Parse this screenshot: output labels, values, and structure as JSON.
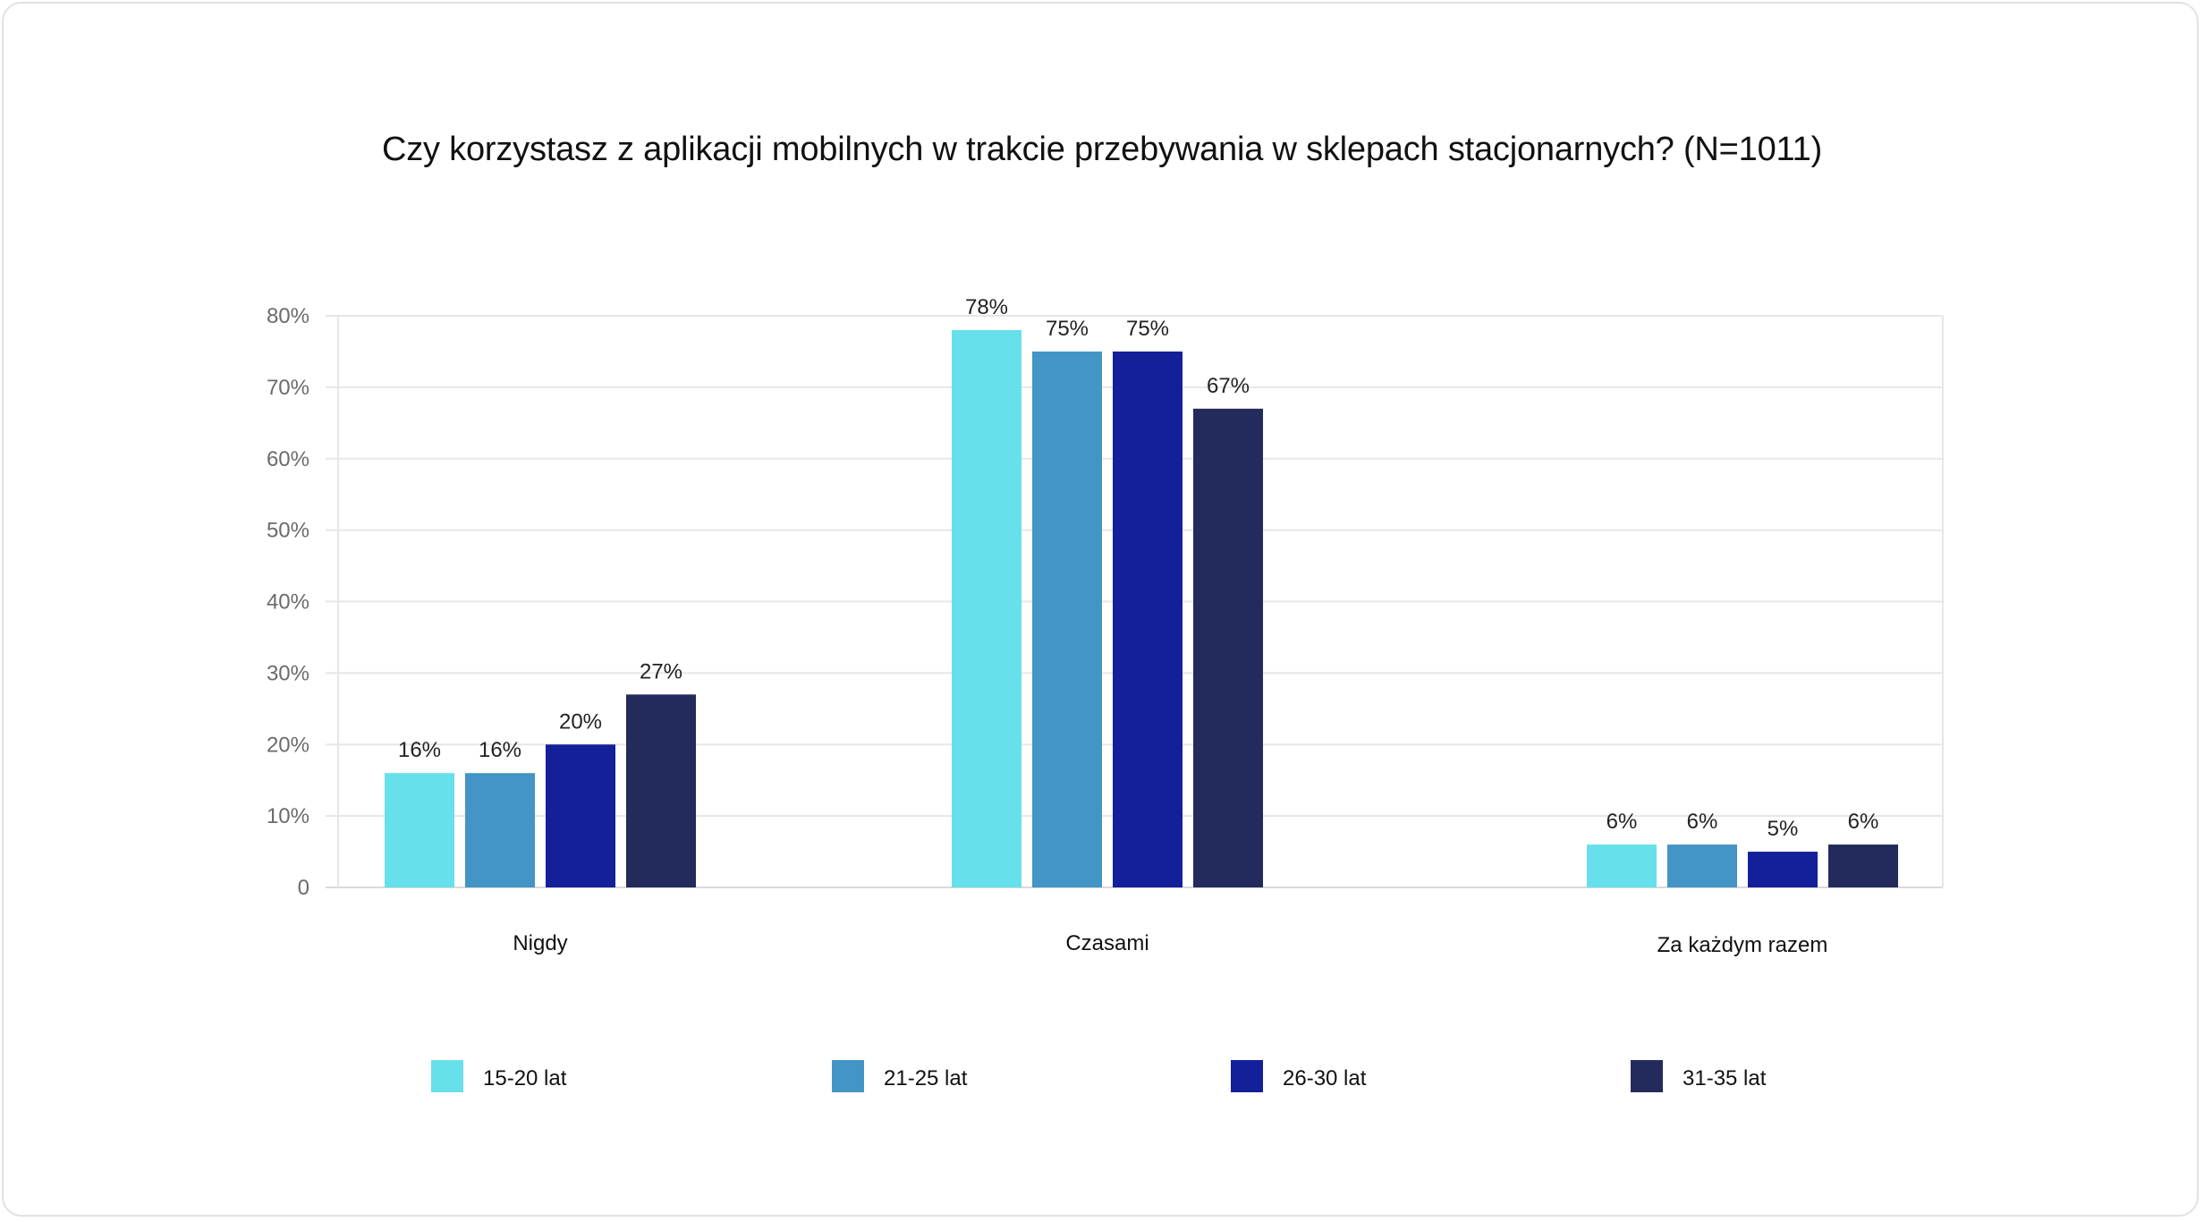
{
  "chart_data": {
    "type": "bar",
    "title": "Czy korzystasz z aplikacji mobilnych w trakcie przebywania w sklepach stacjonarnych? (N=1011)",
    "categories": [
      "Nigdy",
      "Czasami",
      "Za każdym razem"
    ],
    "series": [
      {
        "name": "15-20 lat",
        "color": "#66E0EB",
        "values": [
          16,
          78,
          6
        ],
        "labels": [
          "16%",
          "78%",
          "6%"
        ]
      },
      {
        "name": "21-25 lat",
        "color": "#4295C5",
        "values": [
          16,
          75,
          6
        ],
        "labels": [
          "16%",
          "75%",
          "6%"
        ]
      },
      {
        "name": "26-30 lat",
        "color": "#141F9A",
        "values": [
          20,
          75,
          5
        ],
        "labels": [
          "20%",
          "75%",
          "5%"
        ]
      },
      {
        "name": "31-35 lat",
        "color": "#232B5C",
        "values": [
          27,
          67,
          6
        ],
        "labels": [
          "27%",
          "67%",
          "6%"
        ]
      }
    ],
    "ylim": [
      0,
      80
    ],
    "yticks": [
      0,
      10,
      20,
      30,
      40,
      50,
      60,
      70,
      80
    ],
    "ytick_labels": [
      "0",
      "10%",
      "20%",
      "30%",
      "40%",
      "50%",
      "60%",
      "70%",
      "80%"
    ],
    "xlabel": "",
    "ylabel": "",
    "grid": true,
    "legend_position": "bottom"
  }
}
